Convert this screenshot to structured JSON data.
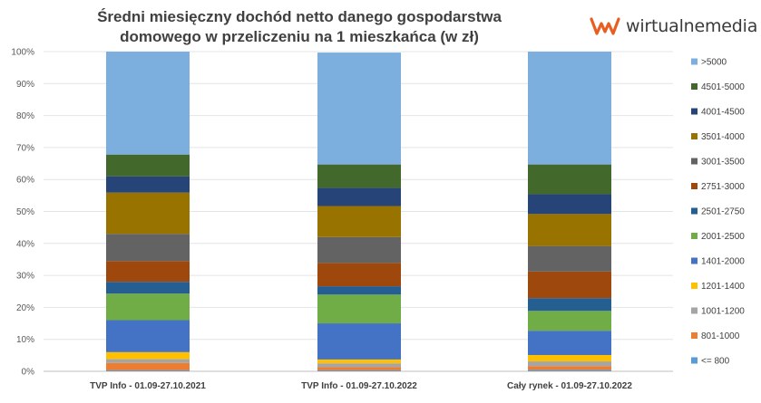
{
  "brand": {
    "name": "wirtualnemedia",
    "color": "#e85d20"
  },
  "chart_data": {
    "type": "bar",
    "stacked": true,
    "percent": true,
    "title": "Średni miesięczny dochód netto danego gospodarstwa domowego w przeliczeniu na 1 mieszkańca (w zł)",
    "title_lines": [
      "Średni miesięczny dochód netto danego gospodarstwa",
      "domowego w przeliczeniu na 1 mieszkańca (w zł)"
    ],
    "categories": [
      "TVP Info - 01.09-27.10.2021",
      "TVP Info - 01.09-27.10.2022",
      "Cały rynek - 01.09-27.10.2022"
    ],
    "ylim": [
      0,
      100
    ],
    "yticks": [
      "0%",
      "10%",
      "20%",
      "30%",
      "40%",
      "50%",
      "60%",
      "70%",
      "80%",
      "90%",
      "100%"
    ],
    "legend_position": "right",
    "series": [
      {
        "name": "<= 800",
        "color": "#5b9bd5",
        "values": [
          0.3,
          0.3,
          0.4
        ]
      },
      {
        "name": "801-1000",
        "color": "#ed7d31",
        "values": [
          2.3,
          1.0,
          1.2
        ]
      },
      {
        "name": "1001-1200",
        "color": "#a5a5a5",
        "values": [
          1.2,
          1.2,
          1.5
        ]
      },
      {
        "name": "1201-1400",
        "color": "#ffc000",
        "values": [
          2.2,
          1.2,
          2.0
        ]
      },
      {
        "name": "1401-2000",
        "color": "#4472c4",
        "values": [
          10.0,
          11.3,
          7.6
        ]
      },
      {
        "name": "2001-2500",
        "color": "#70ad47",
        "values": [
          8.3,
          9.0,
          6.2
        ]
      },
      {
        "name": "2501-2750",
        "color": "#255e91",
        "values": [
          3.7,
          2.6,
          4.0
        ]
      },
      {
        "name": "2751-3000",
        "color": "#9e480e",
        "values": [
          6.5,
          7.3,
          8.3
        ]
      },
      {
        "name": "3001-3500",
        "color": "#636363",
        "values": [
          8.5,
          8.1,
          8.0
        ]
      },
      {
        "name": "3501-4000",
        "color": "#997300",
        "values": [
          12.9,
          9.7,
          10.0
        ]
      },
      {
        "name": "4001-4500",
        "color": "#264478",
        "values": [
          5.1,
          5.7,
          6.2
        ]
      },
      {
        "name": "4501-5000",
        "color": "#43682b",
        "values": [
          6.8,
          7.3,
          9.3
        ]
      },
      {
        "name": ">5000",
        "color": "#7cafdd",
        "values": [
          32.2,
          35.0,
          35.3
        ]
      }
    ]
  }
}
